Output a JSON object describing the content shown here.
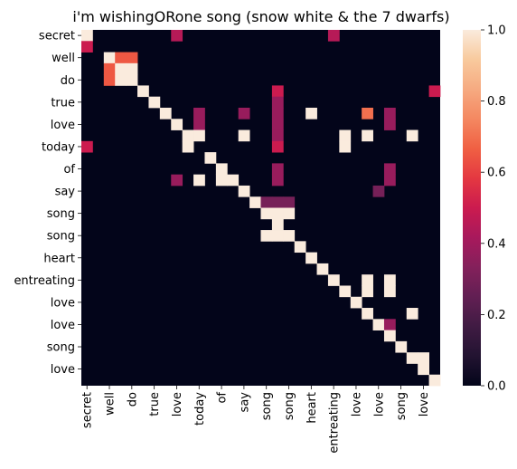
{
  "chart_data": {
    "type": "heatmap",
    "title": "i'm wishingORone song (snow white & the 7 dwarfs)",
    "tokens": [
      "secret",
      "secret",
      "well",
      "well",
      "do",
      "do",
      "true",
      "true",
      "love",
      "love",
      "today",
      "today",
      "of",
      "of",
      "say",
      "say",
      "song",
      "song",
      "song",
      "song",
      "heart",
      "heart",
      "entreating",
      "entreating",
      "love",
      "love",
      "love",
      "love",
      "song",
      "song",
      "love",
      "love"
    ],
    "x_tick_labels": [
      "secret",
      "well",
      "do",
      "true",
      "love",
      "today",
      "of",
      "say",
      "song",
      "song",
      "heart",
      "entreating",
      "love",
      "love",
      "song",
      "love"
    ],
    "y_tick_labels": [
      "secret",
      "well",
      "do",
      "true",
      "love",
      "today",
      "of",
      "say",
      "song",
      "song",
      "heart",
      "entreating",
      "love",
      "love",
      "song",
      "love"
    ],
    "matrix_size": 32,
    "colorbar": {
      "range": [
        0.0,
        1.0
      ],
      "ticks": [
        "0.0",
        "0.2",
        "0.4",
        "0.6",
        "0.8",
        "1.0"
      ]
    },
    "colormap": [
      "#03051a",
      "#221331",
      "#401b43",
      "#621f53",
      "#84205b",
      "#a8195c",
      "#cb1b4f",
      "#e43841",
      "#f06043",
      "#f48861",
      "#f6aa81",
      "#f8ca9d",
      "#faebdd"
    ],
    "cells": [
      [
        0,
        0,
        1.0
      ],
      [
        0,
        8,
        0.45
      ],
      [
        0,
        22,
        0.45
      ],
      [
        1,
        0,
        0.5
      ],
      [
        2,
        2,
        1.0
      ],
      [
        2,
        3,
        0.65
      ],
      [
        2,
        4,
        0.65
      ],
      [
        3,
        2,
        0.65
      ],
      [
        3,
        3,
        1.0
      ],
      [
        3,
        4,
        1.0
      ],
      [
        4,
        2,
        0.65
      ],
      [
        4,
        3,
        1.0
      ],
      [
        4,
        4,
        1.0
      ],
      [
        5,
        5,
        1.0
      ],
      [
        5,
        17,
        0.5
      ],
      [
        5,
        31,
        0.5
      ],
      [
        6,
        6,
        1.0
      ],
      [
        6,
        17,
        0.38
      ],
      [
        7,
        7,
        1.0
      ],
      [
        7,
        10,
        0.38
      ],
      [
        7,
        14,
        0.38
      ],
      [
        7,
        17,
        0.38
      ],
      [
        7,
        20,
        1.0
      ],
      [
        7,
        25,
        0.7
      ],
      [
        7,
        27,
        0.38
      ],
      [
        8,
        8,
        1.0
      ],
      [
        8,
        10,
        0.38
      ],
      [
        8,
        17,
        0.38
      ],
      [
        8,
        27,
        0.38
      ],
      [
        9,
        9,
        1.0
      ],
      [
        9,
        10,
        1.0
      ],
      [
        9,
        14,
        1.0
      ],
      [
        9,
        17,
        0.38
      ],
      [
        9,
        23,
        1.0
      ],
      [
        9,
        25,
        1.0
      ],
      [
        9,
        29,
        1.0
      ],
      [
        10,
        0,
        0.5
      ],
      [
        10,
        9,
        1.0
      ],
      [
        10,
        17,
        0.5
      ],
      [
        10,
        23,
        1.0
      ],
      [
        11,
        11,
        1.0
      ],
      [
        12,
        12,
        1.0
      ],
      [
        12,
        17,
        0.38
      ],
      [
        12,
        27,
        0.38
      ],
      [
        13,
        8,
        0.38
      ],
      [
        13,
        10,
        1.0
      ],
      [
        13,
        12,
        1.0
      ],
      [
        13,
        13,
        1.0
      ],
      [
        13,
        17,
        0.38
      ],
      [
        13,
        27,
        0.38
      ],
      [
        14,
        14,
        1.0
      ],
      [
        14,
        26,
        0.3
      ],
      [
        15,
        15,
        1.0
      ],
      [
        15,
        16,
        0.3
      ],
      [
        15,
        17,
        0.3
      ],
      [
        15,
        18,
        0.3
      ],
      [
        16,
        16,
        1.0
      ],
      [
        16,
        17,
        1.0
      ],
      [
        16,
        18,
        1.0
      ],
      [
        17,
        17,
        1.0
      ],
      [
        18,
        16,
        1.0
      ],
      [
        18,
        17,
        1.0
      ],
      [
        18,
        18,
        1.0
      ],
      [
        19,
        19,
        1.0
      ],
      [
        20,
        20,
        1.0
      ],
      [
        21,
        21,
        1.0
      ],
      [
        22,
        22,
        1.0
      ],
      [
        22,
        25,
        1.0
      ],
      [
        22,
        27,
        1.0
      ],
      [
        23,
        23,
        1.0
      ],
      [
        23,
        25,
        1.0
      ],
      [
        23,
        27,
        1.0
      ],
      [
        24,
        24,
        1.0
      ],
      [
        25,
        25,
        1.0
      ],
      [
        25,
        29,
        1.0
      ],
      [
        26,
        26,
        1.0
      ],
      [
        26,
        27,
        0.38
      ],
      [
        27,
        27,
        1.0
      ],
      [
        28,
        28,
        1.0
      ],
      [
        29,
        29,
        1.0
      ],
      [
        29,
        30,
        1.0
      ],
      [
        30,
        30,
        1.0
      ],
      [
        31,
        31,
        1.0
      ]
    ]
  }
}
